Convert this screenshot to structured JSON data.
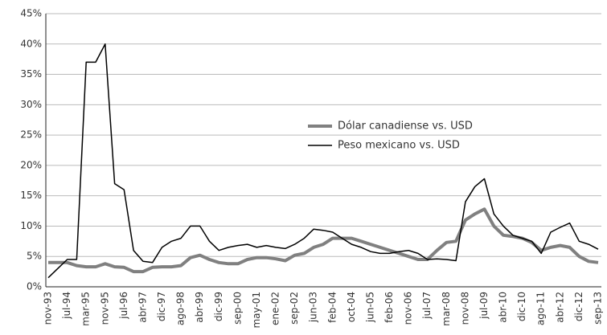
{
  "chart_data": {
    "type": "line",
    "categories": [
      "nov-93",
      null,
      "jul-94",
      null,
      "mar-95",
      null,
      "nov-95",
      null,
      "jul-96",
      null,
      "abr-97",
      null,
      "dic-97",
      null,
      "ago-98",
      null,
      "abr-99",
      null,
      "dic-99",
      null,
      "sep-00",
      null,
      "may-01",
      null,
      "ene-02",
      null,
      "sep-02",
      null,
      "jun-03",
      null,
      "feb-04",
      null,
      "oct-04",
      null,
      "jun-05",
      null,
      "feb-06",
      null,
      "nov-06",
      null,
      "jul-07",
      null,
      "mar-08",
      null,
      "nov-08",
      null,
      "jul-09",
      null,
      "abr-10",
      null,
      "dic-10",
      null,
      "ago-11",
      null,
      "abr-12",
      null,
      "dic-12",
      null,
      "sep-13"
    ],
    "series": [
      {
        "name": "Dólar canadiense vs. USD",
        "color": "#808080",
        "values": [
          4,
          4,
          4,
          3.5,
          3.3,
          3.3,
          3.8,
          3.3,
          3.2,
          2.5,
          2.5,
          3.2,
          3.3,
          3.3,
          3.5,
          4.8,
          5.2,
          4.5,
          4,
          3.8,
          3.8,
          4.5,
          4.8,
          4.8,
          4.6,
          4.3,
          5.2,
          5.5,
          6.5,
          7,
          8,
          8,
          8,
          7.5,
          7,
          6.5,
          6,
          5.5,
          5,
          4.5,
          4.5,
          6,
          7.3,
          7.5,
          11,
          12,
          12.8,
          10,
          8.5,
          8.3,
          8,
          7.3,
          6,
          6.5,
          6.8,
          6.5,
          5,
          4.2,
          4
        ]
      },
      {
        "name": "Peso mexicano vs. USD",
        "color": "#000000",
        "values": [
          1.5,
          3,
          4.5,
          4.5,
          37,
          37,
          40,
          17,
          16,
          6,
          4.2,
          4,
          6.5,
          7.5,
          8,
          10,
          10,
          7.5,
          6,
          6.5,
          6.8,
          7,
          6.5,
          6.8,
          6.5,
          6.3,
          7,
          8,
          9.5,
          9.3,
          9,
          8,
          7,
          6.5,
          5.8,
          5.5,
          5.5,
          5.8,
          6,
          5.5,
          4.5,
          4.6,
          4.5,
          4.3,
          14,
          16.5,
          17.8,
          12,
          10,
          8.5,
          8,
          7.5,
          5.5,
          9,
          9.8,
          10.5,
          7.5,
          7,
          6.2
        ]
      }
    ],
    "ylim": [
      0,
      45
    ],
    "yticks": [
      {
        "value": 0,
        "label": "0%"
      },
      {
        "value": 5,
        "label": "5%"
      },
      {
        "value": 10,
        "label": "10%"
      },
      {
        "value": 15,
        "label": "15%"
      },
      {
        "value": 20,
        "label": "20%"
      },
      {
        "value": 25,
        "label": "25%"
      },
      {
        "value": 30,
        "label": "30%"
      },
      {
        "value": 35,
        "label": "35%"
      },
      {
        "value": 40,
        "label": "40%"
      },
      {
        "value": 45,
        "label": "45%"
      }
    ],
    "grid": true
  }
}
